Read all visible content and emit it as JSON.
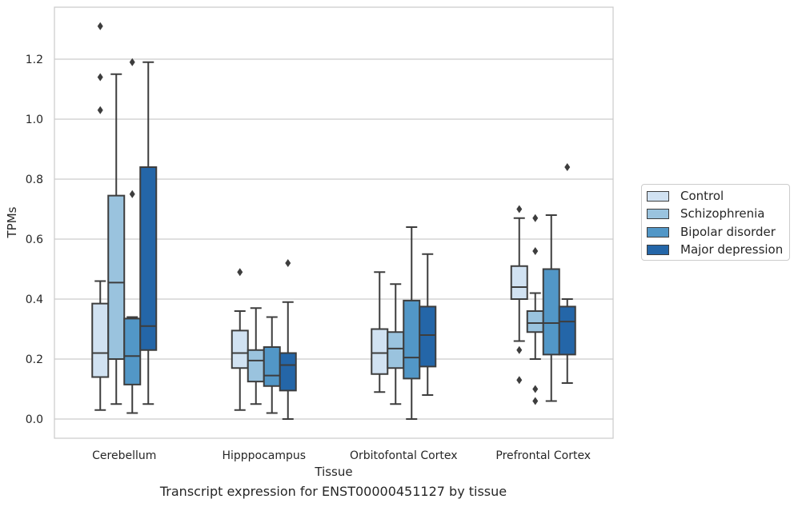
{
  "chart_data": {
    "type": "boxplot",
    "title": "",
    "caption": "Transcript expression for ENST00000451127 by tissue",
    "xlabel": "Tissue",
    "ylabel": "TPMs",
    "ylim": [
      -0.065,
      1.38
    ],
    "yticks": [
      "0.0",
      "0.2",
      "0.4",
      "0.6",
      "0.8",
      "1.0",
      "1.2"
    ],
    "ytick_values": [
      0.0,
      0.2,
      0.4,
      0.6,
      0.8,
      1.0,
      1.2
    ],
    "grid": "horizontal",
    "legend_position": "right-outside",
    "categories": [
      "Cerebellum",
      "Hipppocampus",
      "Orbitofontal Cortex",
      "Prefrontal Cortex"
    ],
    "series": [
      {
        "name": "Control",
        "color": "#d1e2f2",
        "boxes": [
          {
            "whislo": 0.03,
            "q1": 0.14,
            "med": 0.22,
            "q3": 0.385,
            "whishi": 0.46,
            "fliers": [
              1.03,
              1.14,
              1.31
            ]
          },
          {
            "whislo": 0.03,
            "q1": 0.17,
            "med": 0.22,
            "q3": 0.295,
            "whishi": 0.36,
            "fliers": [
              0.49
            ]
          },
          {
            "whislo": 0.09,
            "q1": 0.15,
            "med": 0.22,
            "q3": 0.3,
            "whishi": 0.49,
            "fliers": []
          },
          {
            "whislo": 0.26,
            "q1": 0.4,
            "med": 0.44,
            "q3": 0.51,
            "whishi": 0.67,
            "fliers": [
              0.7,
              0.23,
              0.13
            ]
          }
        ]
      },
      {
        "name": "Schizophrenia",
        "color": "#9ac3de",
        "boxes": [
          {
            "whislo": 0.05,
            "q1": 0.2,
            "med": 0.455,
            "q3": 0.745,
            "whishi": 1.15,
            "fliers": []
          },
          {
            "whislo": 0.05,
            "q1": 0.125,
            "med": 0.195,
            "q3": 0.23,
            "whishi": 0.37,
            "fliers": []
          },
          {
            "whislo": 0.05,
            "q1": 0.17,
            "med": 0.235,
            "q3": 0.29,
            "whishi": 0.45,
            "fliers": []
          },
          {
            "whislo": 0.2,
            "q1": 0.29,
            "med": 0.32,
            "q3": 0.36,
            "whishi": 0.42,
            "fliers": [
              0.67,
              0.56,
              0.1,
              0.06
            ]
          }
        ]
      },
      {
        "name": "Bipolar disorder",
        "color": "#5297c7",
        "boxes": [
          {
            "whislo": 0.02,
            "q1": 0.115,
            "med": 0.21,
            "q3": 0.335,
            "whishi": 0.34,
            "fliers": [
              1.19,
              0.75
            ]
          },
          {
            "whislo": 0.02,
            "q1": 0.11,
            "med": 0.145,
            "q3": 0.24,
            "whishi": 0.34,
            "fliers": []
          },
          {
            "whislo": 0.0,
            "q1": 0.135,
            "med": 0.205,
            "q3": 0.395,
            "whishi": 0.64,
            "fliers": []
          },
          {
            "whislo": 0.06,
            "q1": 0.215,
            "med": 0.32,
            "q3": 0.5,
            "whishi": 0.68,
            "fliers": []
          }
        ]
      },
      {
        "name": "Major depression",
        "color": "#2466a8",
        "boxes": [
          {
            "whislo": 0.05,
            "q1": 0.23,
            "med": 0.31,
            "q3": 0.84,
            "whishi": 1.19,
            "fliers": []
          },
          {
            "whislo": 0.0,
            "q1": 0.095,
            "med": 0.18,
            "q3": 0.22,
            "whishi": 0.39,
            "fliers": [
              0.52
            ]
          },
          {
            "whislo": 0.08,
            "q1": 0.175,
            "med": 0.28,
            "q3": 0.375,
            "whishi": 0.55,
            "fliers": []
          },
          {
            "whislo": 0.12,
            "q1": 0.215,
            "med": 0.325,
            "q3": 0.375,
            "whishi": 0.4,
            "fliers": [
              0.84
            ]
          }
        ]
      }
    ]
  }
}
